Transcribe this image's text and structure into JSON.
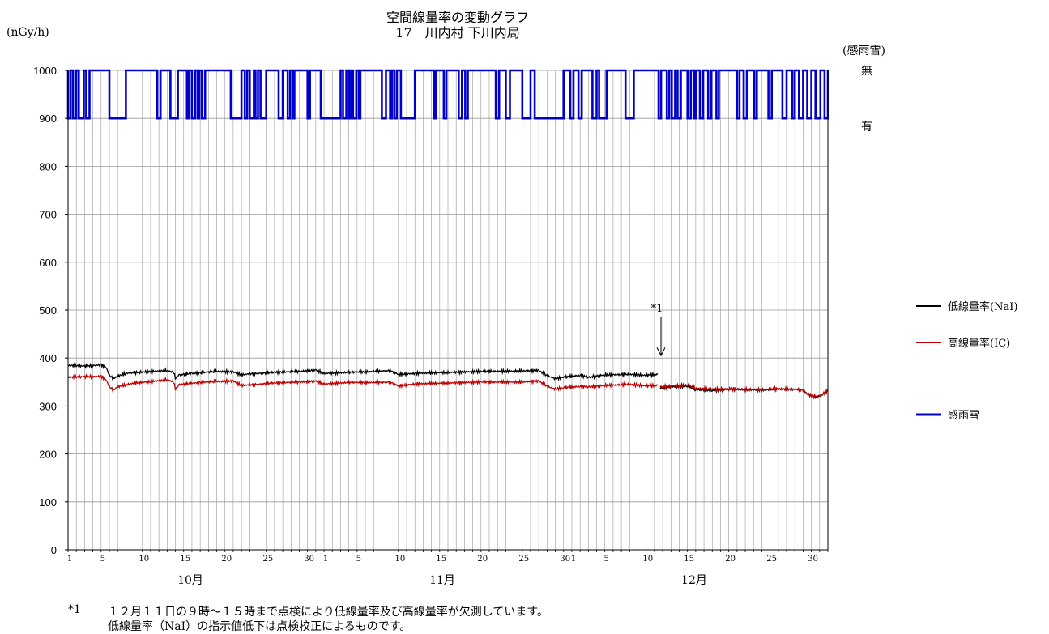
{
  "header": {
    "title_line1": "空間線量率の変動グラフ",
    "title_line2": "17　川内村 下川内局",
    "unit_left": "(nGy/h)",
    "unit_right": "(感雨雪)"
  },
  "annotation": {
    "marker": "*1",
    "day": 11.5,
    "month": "12月",
    "arrow_target_value": 405
  },
  "notes": {
    "marker": "*1",
    "line1": "１２月１１日の９時～１５時まで点検により低線量率及び高線量率が欠測しています。",
    "line2": "低線量率（NaI）の指示値低下は点検校正によるものです。"
  },
  "colors": {
    "nai": "#000000",
    "ic": "#c00000",
    "rain": "#0000cc",
    "grid": "#999999"
  },
  "chart_data": {
    "type": "line",
    "y_range": [
      0,
      1000
    ],
    "y_ticks": [
      "0",
      "100",
      "200",
      "300",
      "400",
      "500",
      "600",
      "700",
      "800",
      "900",
      "1000"
    ],
    "x_range_days": [
      0,
      92
    ],
    "months": [
      {
        "label": "10月",
        "start_day": 0,
        "days": 31,
        "ticks": [
          1,
          5,
          10,
          15,
          20,
          25,
          30
        ]
      },
      {
        "label": "11月",
        "start_day": 31,
        "days": 30,
        "ticks": [
          1,
          5,
          10,
          15,
          20,
          25,
          30
        ]
      },
      {
        "label": "12月",
        "start_day": 61,
        "days": 31,
        "ticks": [
          1,
          5,
          10,
          15,
          20,
          25,
          30
        ]
      }
    ],
    "rain_axis": {
      "no_value": 1000,
      "yes_value": 900,
      "no_label": "無",
      "yes_label": "有"
    },
    "series": [
      {
        "key": "nai",
        "name": "低線量率(NaI)",
        "points": [
          [
            0,
            385
          ],
          [
            2,
            383
          ],
          [
            4,
            386
          ],
          [
            4.6,
            381
          ],
          [
            5,
            364
          ],
          [
            5.5,
            357
          ],
          [
            6,
            362
          ],
          [
            7,
            368
          ],
          [
            9,
            371
          ],
          [
            12,
            374
          ],
          [
            12.8,
            370
          ],
          [
            13,
            358
          ],
          [
            13.5,
            365
          ],
          [
            15,
            368
          ],
          [
            18,
            372
          ],
          [
            20,
            371
          ],
          [
            21,
            365
          ],
          [
            22,
            367
          ],
          [
            25,
            370
          ],
          [
            28,
            372
          ],
          [
            30,
            375
          ],
          [
            31,
            368
          ],
          [
            34,
            370
          ],
          [
            37,
            372
          ],
          [
            39,
            374
          ],
          [
            40,
            366
          ],
          [
            42,
            368
          ],
          [
            46,
            370
          ],
          [
            50,
            372
          ],
          [
            55,
            373
          ],
          [
            57,
            374
          ],
          [
            58,
            363
          ],
          [
            59,
            357
          ],
          [
            60,
            360
          ],
          [
            62,
            364
          ],
          [
            63,
            360
          ],
          [
            65,
            365
          ],
          [
            68,
            366
          ],
          [
            70,
            364
          ],
          [
            71.4,
            366
          ]
        ]
      },
      {
        "key": "nai_after",
        "name": "",
        "points": [
          [
            71.7,
            337
          ],
          [
            73,
            340
          ],
          [
            75,
            341
          ],
          [
            76,
            334
          ],
          [
            78,
            332
          ],
          [
            80,
            335
          ],
          [
            82,
            334
          ],
          [
            84,
            333
          ],
          [
            86,
            335
          ],
          [
            89,
            334
          ],
          [
            89.5,
            325
          ],
          [
            90.5,
            318
          ],
          [
            91.2,
            322
          ],
          [
            92,
            332
          ]
        ]
      },
      {
        "key": "ic",
        "name": "高線量率(IC)",
        "points": [
          [
            0,
            360
          ],
          [
            2,
            361
          ],
          [
            4,
            362
          ],
          [
            4.6,
            355
          ],
          [
            5,
            340
          ],
          [
            5.5,
            333
          ],
          [
            6,
            340
          ],
          [
            8,
            348
          ],
          [
            10,
            351
          ],
          [
            12,
            355
          ],
          [
            12.8,
            350
          ],
          [
            13,
            335
          ],
          [
            13.5,
            345
          ],
          [
            16,
            349
          ],
          [
            18,
            351
          ],
          [
            20,
            352
          ],
          [
            21,
            343
          ],
          [
            22,
            344
          ],
          [
            25,
            348
          ],
          [
            28,
            350
          ],
          [
            30,
            352
          ],
          [
            31,
            346
          ],
          [
            34,
            349
          ],
          [
            37,
            349
          ],
          [
            39,
            350
          ],
          [
            40,
            342
          ],
          [
            42,
            346
          ],
          [
            46,
            348
          ],
          [
            50,
            350
          ],
          [
            55,
            350
          ],
          [
            57,
            352
          ],
          [
            58,
            341
          ],
          [
            59,
            335
          ],
          [
            60,
            338
          ],
          [
            62,
            341
          ],
          [
            63,
            340
          ],
          [
            65,
            343
          ],
          [
            68,
            345
          ],
          [
            70,
            342
          ],
          [
            71.4,
            343
          ]
        ]
      },
      {
        "key": "ic_after",
        "name": "",
        "points": [
          [
            71.7,
            340
          ],
          [
            73,
            342
          ],
          [
            75,
            344
          ],
          [
            76,
            337
          ],
          [
            78,
            335
          ],
          [
            80,
            336
          ],
          [
            82,
            335
          ],
          [
            84,
            334
          ],
          [
            86,
            336
          ],
          [
            89,
            334
          ],
          [
            89.5,
            324
          ],
          [
            90.5,
            320
          ],
          [
            91.2,
            323
          ],
          [
            92,
            333
          ]
        ]
      }
    ],
    "rain_series": {
      "name": "感雨雪",
      "rain_intervals": [
        [
          0,
          0.3
        ],
        [
          0.6,
          1
        ],
        [
          1.3,
          1.9
        ],
        [
          2.2,
          2.6
        ],
        [
          5,
          7
        ],
        [
          10.8,
          11.2
        ],
        [
          12.4,
          13.3
        ],
        [
          14.4,
          14.6
        ],
        [
          15.0,
          15.4
        ],
        [
          15.7,
          15.9
        ],
        [
          16.2,
          16.6
        ],
        [
          19.7,
          21
        ],
        [
          21.4,
          21.7
        ],
        [
          22,
          22.5
        ],
        [
          22.7,
          23
        ],
        [
          23.3,
          24
        ],
        [
          25.5,
          26
        ],
        [
          26.6,
          26.9
        ],
        [
          27.2,
          27.4
        ],
        [
          29,
          29.3
        ],
        [
          30.6,
          33
        ],
        [
          33.3,
          33.7
        ],
        [
          34,
          34.2
        ],
        [
          34.5,
          34.9
        ],
        [
          35.2,
          35.4
        ],
        [
          38,
          38.5
        ],
        [
          39,
          39.2
        ],
        [
          39.5,
          39.8
        ],
        [
          40.3,
          42
        ],
        [
          44.3,
          44.5
        ],
        [
          45.5,
          45.8
        ],
        [
          47.3,
          47.7
        ],
        [
          48.1,
          48.4
        ],
        [
          51.8,
          52.2
        ],
        [
          53,
          53.5
        ],
        [
          55,
          56
        ],
        [
          56.5,
          60
        ],
        [
          60.8,
          61.2
        ],
        [
          61.8,
          62.2
        ],
        [
          63.5,
          64
        ],
        [
          64.3,
          65.2
        ],
        [
          67.5,
          68.5
        ],
        [
          71.5,
          71.8
        ],
        [
          72.5,
          72.8
        ],
        [
          73.1,
          73.5
        ],
        [
          73.8,
          74.2
        ],
        [
          75,
          75.4
        ],
        [
          75.8,
          76
        ],
        [
          76.5,
          76.9
        ],
        [
          77.5,
          77.9
        ],
        [
          78.5,
          78.8
        ],
        [
          81,
          81.3
        ],
        [
          81.8,
          82.2
        ],
        [
          83.1,
          83.4
        ],
        [
          84.8,
          85.2
        ],
        [
          86.5,
          87
        ],
        [
          87.7,
          88
        ],
        [
          88.5,
          89
        ],
        [
          89.5,
          90
        ],
        [
          90.5,
          91.1
        ],
        [
          91.6,
          92
        ]
      ]
    }
  }
}
